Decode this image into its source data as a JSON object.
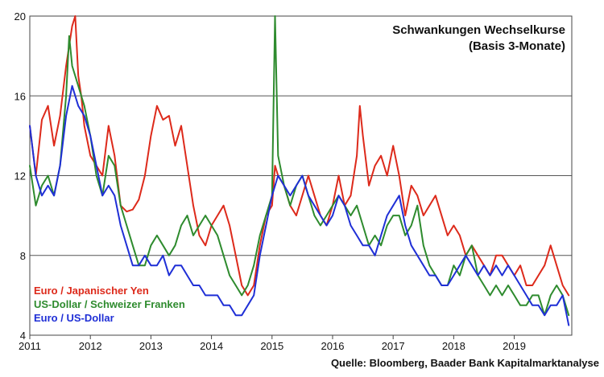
{
  "chart_data": {
    "type": "line",
    "title_lines": [
      "Schwankungen Wechselkurse",
      "(Basis 3-Monate)"
    ],
    "source": "Quelle: Bloomberg, Baader Bank Kapitalmarktanalyse",
    "xlim": [
      2011,
      2019.95
    ],
    "ylim": [
      4,
      20
    ],
    "x_ticks": [
      2011,
      2012,
      2013,
      2014,
      2015,
      2016,
      2017,
      2018,
      2019
    ],
    "x_tick_labels": [
      "2011",
      "2012",
      "2013",
      "2014",
      "2015",
      "2016",
      "2017",
      "2018",
      "2019"
    ],
    "y_ticks": [
      4,
      8,
      12,
      16,
      20
    ],
    "y_tick_labels": [
      "4",
      "8",
      "12",
      "16",
      "20"
    ],
    "grid": "horizontal",
    "legend_position": "bottom-left",
    "series": [
      {
        "name": "Euro / Japanischer Yen",
        "color": "#dd2a1b",
        "x": [
          2011.0,
          2011.1,
          2011.2,
          2011.3,
          2011.4,
          2011.5,
          2011.6,
          2011.7,
          2011.75,
          2011.8,
          2011.85,
          2011.9,
          2012.0,
          2012.1,
          2012.2,
          2012.3,
          2012.4,
          2012.5,
          2012.6,
          2012.7,
          2012.8,
          2012.9,
          2013.0,
          2013.1,
          2013.2,
          2013.3,
          2013.4,
          2013.5,
          2013.6,
          2013.7,
          2013.8,
          2013.9,
          2014.0,
          2014.1,
          2014.2,
          2014.3,
          2014.4,
          2014.5,
          2014.6,
          2014.7,
          2014.8,
          2014.9,
          2015.0,
          2015.05,
          2015.1,
          2015.2,
          2015.3,
          2015.4,
          2015.5,
          2015.6,
          2015.7,
          2015.8,
          2015.9,
          2016.0,
          2016.1,
          2016.2,
          2016.3,
          2016.4,
          2016.45,
          2016.5,
          2016.6,
          2016.7,
          2016.8,
          2016.9,
          2017.0,
          2017.1,
          2017.2,
          2017.3,
          2017.4,
          2017.5,
          2017.6,
          2017.7,
          2017.8,
          2017.9,
          2018.0,
          2018.1,
          2018.2,
          2018.3,
          2018.4,
          2018.5,
          2018.6,
          2018.7,
          2018.8,
          2018.9,
          2019.0,
          2019.1,
          2019.2,
          2019.3,
          2019.4,
          2019.5,
          2019.6,
          2019.7,
          2019.8,
          2019.9
        ],
        "values": [
          14.5,
          12.0,
          14.8,
          15.5,
          13.5,
          15.0,
          17.5,
          19.5,
          20.0,
          17.0,
          16.0,
          14.5,
          13.0,
          12.5,
          12.0,
          14.5,
          13.0,
          10.5,
          10.2,
          10.3,
          10.8,
          12.0,
          14.0,
          15.5,
          14.8,
          15.0,
          13.5,
          14.5,
          12.5,
          10.5,
          9.0,
          8.5,
          9.5,
          10.0,
          10.5,
          9.5,
          8.0,
          6.5,
          6.0,
          6.5,
          8.5,
          10.0,
          10.5,
          12.5,
          12.0,
          11.5,
          10.5,
          10.0,
          11.0,
          12.0,
          11.0,
          10.0,
          9.5,
          10.5,
          12.0,
          10.5,
          11.0,
          13.0,
          15.5,
          14.0,
          11.5,
          12.5,
          13.0,
          12.0,
          13.5,
          12.0,
          10.0,
          11.5,
          11.0,
          10.0,
          10.5,
          11.0,
          10.0,
          9.0,
          9.5,
          9.0,
          8.0,
          8.5,
          8.0,
          7.5,
          7.0,
          8.0,
          8.0,
          7.5,
          7.0,
          7.5,
          6.5,
          6.5,
          7.0,
          7.5,
          8.5,
          7.5,
          6.5,
          6.0
        ]
      },
      {
        "name": "US-Dollar / Schweizer Franken",
        "color": "#2e8b2e",
        "x": [
          2011.0,
          2011.1,
          2011.2,
          2011.3,
          2011.4,
          2011.5,
          2011.6,
          2011.65,
          2011.7,
          2011.8,
          2011.9,
          2012.0,
          2012.1,
          2012.2,
          2012.3,
          2012.4,
          2012.5,
          2012.6,
          2012.7,
          2012.8,
          2012.9,
          2013.0,
          2013.1,
          2013.2,
          2013.3,
          2013.4,
          2013.5,
          2013.6,
          2013.7,
          2013.8,
          2013.9,
          2014.0,
          2014.1,
          2014.2,
          2014.3,
          2014.4,
          2014.5,
          2014.6,
          2014.7,
          2014.8,
          2014.9,
          2015.0,
          2015.05,
          2015.1,
          2015.2,
          2015.3,
          2015.4,
          2015.5,
          2015.6,
          2015.7,
          2015.8,
          2015.9,
          2016.0,
          2016.1,
          2016.2,
          2016.3,
          2016.4,
          2016.5,
          2016.6,
          2016.7,
          2016.8,
          2016.9,
          2017.0,
          2017.1,
          2017.2,
          2017.3,
          2017.4,
          2017.5,
          2017.6,
          2017.7,
          2017.8,
          2017.9,
          2018.0,
          2018.1,
          2018.2,
          2018.3,
          2018.4,
          2018.5,
          2018.6,
          2018.7,
          2018.8,
          2018.9,
          2019.0,
          2019.1,
          2019.2,
          2019.3,
          2019.4,
          2019.5,
          2019.6,
          2019.7,
          2019.8,
          2019.9
        ],
        "values": [
          12.5,
          10.5,
          11.5,
          12.0,
          11.0,
          12.5,
          16.0,
          19.0,
          17.5,
          16.5,
          15.5,
          14.0,
          12.0,
          11.0,
          13.0,
          12.5,
          10.5,
          9.5,
          8.5,
          7.5,
          7.5,
          8.5,
          9.0,
          8.5,
          8.0,
          8.5,
          9.5,
          10.0,
          9.0,
          9.5,
          10.0,
          9.5,
          9.0,
          8.0,
          7.0,
          6.5,
          6.0,
          6.5,
          7.5,
          9.0,
          10.0,
          11.0,
          20.0,
          13.0,
          11.5,
          10.5,
          11.5,
          12.0,
          11.0,
          10.0,
          9.5,
          10.0,
          10.5,
          11.0,
          10.5,
          10.0,
          10.5,
          9.5,
          8.5,
          9.0,
          8.5,
          9.5,
          10.0,
          10.0,
          9.0,
          9.5,
          10.5,
          8.5,
          7.5,
          7.0,
          6.5,
          6.5,
          7.5,
          7.0,
          8.0,
          8.5,
          7.0,
          6.5,
          6.0,
          6.5,
          6.0,
          6.5,
          6.0,
          5.5,
          5.5,
          6.0,
          6.0,
          5.0,
          6.0,
          6.5,
          6.0,
          5.0
        ]
      },
      {
        "name": "Euro / US-Dollar",
        "color": "#1f2fd6",
        "x": [
          2011.0,
          2011.1,
          2011.2,
          2011.3,
          2011.4,
          2011.5,
          2011.6,
          2011.7,
          2011.8,
          2011.9,
          2012.0,
          2012.1,
          2012.2,
          2012.3,
          2012.4,
          2012.5,
          2012.6,
          2012.7,
          2012.8,
          2012.9,
          2013.0,
          2013.1,
          2013.2,
          2013.3,
          2013.4,
          2013.5,
          2013.6,
          2013.7,
          2013.8,
          2013.9,
          2014.0,
          2014.1,
          2014.2,
          2014.3,
          2014.4,
          2014.5,
          2014.6,
          2014.7,
          2014.8,
          2014.9,
          2015.0,
          2015.1,
          2015.2,
          2015.3,
          2015.4,
          2015.5,
          2015.6,
          2015.7,
          2015.8,
          2015.9,
          2016.0,
          2016.1,
          2016.2,
          2016.3,
          2016.4,
          2016.5,
          2016.6,
          2016.7,
          2016.8,
          2016.9,
          2017.0,
          2017.1,
          2017.2,
          2017.3,
          2017.4,
          2017.5,
          2017.6,
          2017.7,
          2017.8,
          2017.9,
          2018.0,
          2018.1,
          2018.2,
          2018.3,
          2018.4,
          2018.5,
          2018.6,
          2018.7,
          2018.8,
          2018.9,
          2019.0,
          2019.1,
          2019.2,
          2019.3,
          2019.4,
          2019.5,
          2019.6,
          2019.7,
          2019.8,
          2019.9
        ],
        "values": [
          14.5,
          12.0,
          11.0,
          11.5,
          11.0,
          12.5,
          15.0,
          16.5,
          15.5,
          15.0,
          14.0,
          12.5,
          11.0,
          11.5,
          11.0,
          9.5,
          8.5,
          7.5,
          7.5,
          8.0,
          7.5,
          7.5,
          8.0,
          7.0,
          7.5,
          7.5,
          7.0,
          6.5,
          6.5,
          6.0,
          6.0,
          6.0,
          5.5,
          5.5,
          5.0,
          5.0,
          5.5,
          6.0,
          8.0,
          9.5,
          11.0,
          12.0,
          11.5,
          11.0,
          11.5,
          12.0,
          11.0,
          10.5,
          10.0,
          9.5,
          10.0,
          11.0,
          10.5,
          9.5,
          9.0,
          8.5,
          8.5,
          8.0,
          9.0,
          10.0,
          10.5,
          11.0,
          9.5,
          8.5,
          8.0,
          7.5,
          7.0,
          7.0,
          6.5,
          6.5,
          7.0,
          7.5,
          8.0,
          7.5,
          7.0,
          7.5,
          7.0,
          7.5,
          7.0,
          7.5,
          7.0,
          6.5,
          6.0,
          5.5,
          5.5,
          5.0,
          5.5,
          5.5,
          6.0,
          4.5
        ]
      }
    ]
  }
}
